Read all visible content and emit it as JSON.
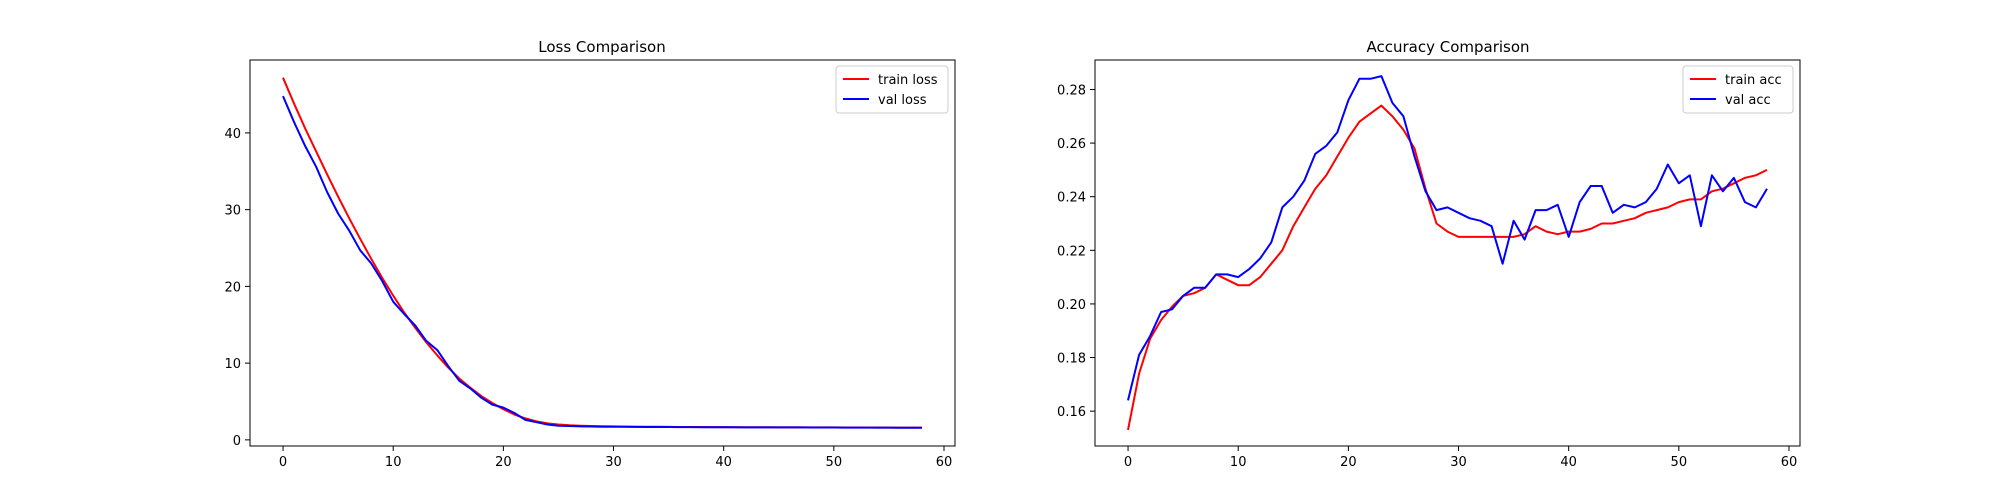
{
  "chart_data": [
    {
      "type": "line",
      "title": "Loss Comparison",
      "xlabel": "",
      "ylabel": "",
      "xlim": [
        -3,
        61
      ],
      "ylim": [
        -0.8,
        49.5
      ],
      "xticks": [
        0,
        10,
        20,
        30,
        40,
        50,
        60
      ],
      "yticks": [
        0,
        10,
        20,
        30,
        40
      ],
      "grid": false,
      "legend": "top-right",
      "x": [
        0,
        1,
        2,
        3,
        4,
        5,
        6,
        7,
        8,
        9,
        10,
        11,
        12,
        13,
        14,
        15,
        16,
        17,
        18,
        19,
        20,
        21,
        22,
        23,
        24,
        25,
        26,
        27,
        28,
        29,
        30,
        31,
        32,
        33,
        34,
        35,
        36,
        37,
        38,
        39,
        40,
        41,
        42,
        43,
        44,
        45,
        46,
        47,
        48,
        49,
        50,
        51,
        52,
        53,
        54,
        55,
        56,
        57,
        58
      ],
      "series": [
        {
          "name": "train loss",
          "color": "#ff0000",
          "values": [
            47.2,
            43.8,
            40.6,
            37.6,
            34.6,
            31.7,
            28.9,
            26.2,
            23.6,
            21.1,
            18.8,
            16.6,
            14.6,
            12.7,
            11.0,
            9.4,
            8.0,
            6.8,
            5.7,
            4.8,
            4.0,
            3.3,
            2.8,
            2.4,
            2.15,
            2.0,
            1.9,
            1.85,
            1.8,
            1.78,
            1.75,
            1.73,
            1.72,
            1.71,
            1.7,
            1.69,
            1.68,
            1.67,
            1.67,
            1.66,
            1.66,
            1.65,
            1.65,
            1.64,
            1.64,
            1.63,
            1.63,
            1.63,
            1.62,
            1.62,
            1.62,
            1.61,
            1.61,
            1.61,
            1.6,
            1.6,
            1.6,
            1.6,
            1.6
          ]
        },
        {
          "name": "val loss",
          "color": "#0000ff",
          "values": [
            44.8,
            41.4,
            38.3,
            35.6,
            32.3,
            29.5,
            27.3,
            24.7,
            23.0,
            20.7,
            18.0,
            16.4,
            14.9,
            12.9,
            11.7,
            9.6,
            7.7,
            6.7,
            5.5,
            4.6,
            4.2,
            3.5,
            2.6,
            2.3,
            2.0,
            1.85,
            1.8,
            1.76,
            1.74,
            1.72,
            1.71,
            1.7,
            1.69,
            1.68,
            1.67,
            1.67,
            1.66,
            1.66,
            1.65,
            1.65,
            1.64,
            1.64,
            1.63,
            1.63,
            1.63,
            1.62,
            1.62,
            1.62,
            1.61,
            1.61,
            1.61,
            1.6,
            1.6,
            1.6,
            1.6,
            1.6,
            1.59,
            1.59,
            1.59
          ]
        }
      ]
    },
    {
      "type": "line",
      "title": "Accuracy Comparison",
      "xlabel": "",
      "ylabel": "",
      "xlim": [
        -3,
        61
      ],
      "ylim": [
        0.147,
        0.291
      ],
      "xticks": [
        0,
        10,
        20,
        30,
        40,
        50,
        60
      ],
      "yticks": [
        0.16,
        0.18,
        0.2,
        0.22,
        0.24,
        0.26,
        0.28
      ],
      "grid": false,
      "legend": "top-right",
      "x": [
        0,
        1,
        2,
        3,
        4,
        5,
        6,
        7,
        8,
        9,
        10,
        11,
        12,
        13,
        14,
        15,
        16,
        17,
        18,
        19,
        20,
        21,
        22,
        23,
        24,
        25,
        26,
        27,
        28,
        29,
        30,
        31,
        32,
        33,
        34,
        35,
        36,
        37,
        38,
        39,
        40,
        41,
        42,
        43,
        44,
        45,
        46,
        47,
        48,
        49,
        50,
        51,
        52,
        53,
        54,
        55,
        56,
        57,
        58
      ],
      "series": [
        {
          "name": "train acc",
          "color": "#ff0000",
          "values": [
            0.153,
            0.174,
            0.187,
            0.194,
            0.199,
            0.203,
            0.204,
            0.206,
            0.211,
            0.209,
            0.207,
            0.207,
            0.21,
            0.215,
            0.22,
            0.229,
            0.236,
            0.243,
            0.248,
            0.255,
            0.262,
            0.268,
            0.271,
            0.274,
            0.27,
            0.265,
            0.258,
            0.243,
            0.23,
            0.227,
            0.225,
            0.225,
            0.225,
            0.225,
            0.225,
            0.225,
            0.226,
            0.229,
            0.227,
            0.226,
            0.227,
            0.227,
            0.228,
            0.23,
            0.23,
            0.231,
            0.232,
            0.234,
            0.235,
            0.236,
            0.238,
            0.239,
            0.239,
            0.242,
            0.243,
            0.245,
            0.247,
            0.248,
            0.25
          ]
        },
        {
          "name": "val acc",
          "color": "#0000ff",
          "values": [
            0.164,
            0.181,
            0.188,
            0.197,
            0.198,
            0.203,
            0.206,
            0.206,
            0.211,
            0.211,
            0.21,
            0.213,
            0.217,
            0.223,
            0.236,
            0.24,
            0.246,
            0.256,
            0.259,
            0.264,
            0.276,
            0.284,
            0.284,
            0.285,
            0.275,
            0.27,
            0.255,
            0.242,
            0.235,
            0.236,
            0.234,
            0.232,
            0.231,
            0.229,
            0.215,
            0.231,
            0.224,
            0.235,
            0.235,
            0.237,
            0.225,
            0.238,
            0.244,
            0.244,
            0.234,
            0.237,
            0.236,
            0.238,
            0.243,
            0.252,
            0.245,
            0.248,
            0.229,
            0.248,
            0.242,
            0.247,
            0.238,
            0.236,
            0.243
          ]
        }
      ]
    }
  ]
}
